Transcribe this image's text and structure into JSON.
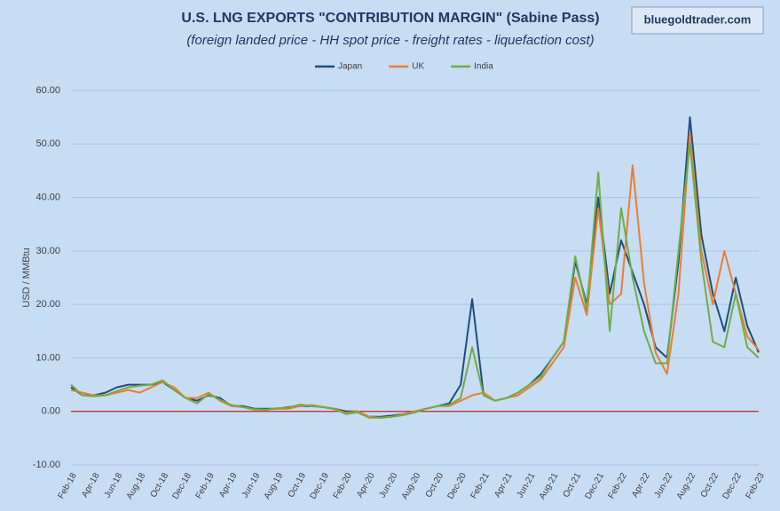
{
  "chart_data": {
    "type": "line",
    "title": "U.S. LNG EXPORTS \"CONTRIBUTION MARGIN\" (Sabine Pass)",
    "subtitle": "(foreign landed price - HH spot price - freight rates - liquefaction cost)",
    "watermark": "bluegoldtrader.com",
    "y_label": "USD / MMBtu",
    "categories": [
      "Feb-18",
      null,
      "Apr-18",
      null,
      "Jun-18",
      null,
      "Aug-18",
      null,
      "Oct-18",
      null,
      "Dec-18",
      null,
      "Feb-19",
      null,
      "Apr-19",
      null,
      "Jun-19",
      null,
      "Aug-19",
      null,
      "Oct-19",
      null,
      "Dec-19",
      null,
      "Feb-20",
      null,
      "Apr-20",
      null,
      "Jun-20",
      null,
      "Aug-20",
      null,
      "Oct-20",
      null,
      "Dec-20",
      null,
      "Feb-21",
      null,
      "Apr-21",
      null,
      "Jun-21",
      null,
      "Aug-21",
      null,
      "Oct-21",
      null,
      "Dec-21",
      null,
      "Feb-22",
      null,
      "Apr-22",
      null,
      "Jun-22",
      null,
      "Aug-22",
      null,
      "Oct-22",
      null,
      "Dec-22",
      null,
      "Feb-23"
    ],
    "series": [
      {
        "name": "Japan",
        "color": "#1f4e79",
        "values": [
          4.5,
          3,
          3,
          3.5,
          4.5,
          5,
          5,
          5,
          5.5,
          4,
          2.5,
          2,
          3,
          2.5,
          1,
          1,
          0.5,
          0.5,
          0.5,
          0.8,
          1,
          1,
          0.8,
          0.5,
          0,
          0,
          -1,
          -1,
          -0.8,
          -0.5,
          0,
          0.5,
          1,
          1.5,
          5,
          21,
          3,
          2,
          2.5,
          3.5,
          5,
          7,
          10,
          13,
          28,
          20,
          40,
          22,
          32,
          26,
          20,
          12,
          10,
          28,
          55,
          33,
          22,
          15,
          25,
          16,
          11
        ]
      },
      {
        "name": "UK",
        "color": "#ed7d31",
        "values": [
          4,
          3.5,
          3,
          3,
          3.5,
          4,
          3.5,
          4.5,
          5.5,
          4.5,
          2.5,
          2.5,
          3.5,
          2,
          1,
          0.8,
          0.3,
          0.3,
          0.5,
          0.5,
          1,
          1.2,
          0.8,
          0.5,
          -0.3,
          0,
          -1,
          -1.2,
          -1,
          -0.5,
          0,
          0.5,
          1,
          1,
          2,
          3,
          3.5,
          2,
          2.5,
          3,
          4.5,
          6,
          9,
          12,
          25,
          18,
          38,
          20,
          22,
          46,
          24,
          11,
          7,
          22,
          52,
          30,
          20,
          30,
          22,
          14,
          11.5
        ]
      },
      {
        "name": "India",
        "color": "#70ad47",
        "values": [
          5,
          3,
          2.8,
          3,
          3.8,
          4.5,
          4.8,
          5,
          5.8,
          4,
          2.5,
          1.5,
          3.2,
          2.2,
          1.2,
          0.8,
          0.4,
          0.3,
          0.6,
          0.7,
          1.3,
          1,
          0.8,
          0.4,
          -0.5,
          -0.2,
          -1.2,
          -1.2,
          -1,
          -0.7,
          -0.2,
          0.5,
          1,
          1.2,
          2.5,
          12,
          3,
          2,
          2.5,
          3.5,
          5,
          6.5,
          10,
          13,
          29,
          19,
          44.7,
          15,
          38,
          25,
          15,
          9,
          9,
          30,
          50,
          28,
          13,
          12,
          22,
          12,
          10
        ]
      }
    ],
    "ylim": [
      -10,
      60
    ],
    "yticks": [
      {
        "value": -10,
        "label": "-10.00"
      },
      {
        "value": 0,
        "label": "0.00"
      },
      {
        "value": 10,
        "label": "10.00"
      },
      {
        "value": 20,
        "label": "20.00"
      },
      {
        "value": 30,
        "label": "30.00"
      },
      {
        "value": 40,
        "label": "40.00"
      },
      {
        "value": 50,
        "label": "50.00"
      },
      {
        "value": 60,
        "label": "60.00"
      }
    ],
    "grid": true,
    "zero_line_color": "#c00000"
  }
}
